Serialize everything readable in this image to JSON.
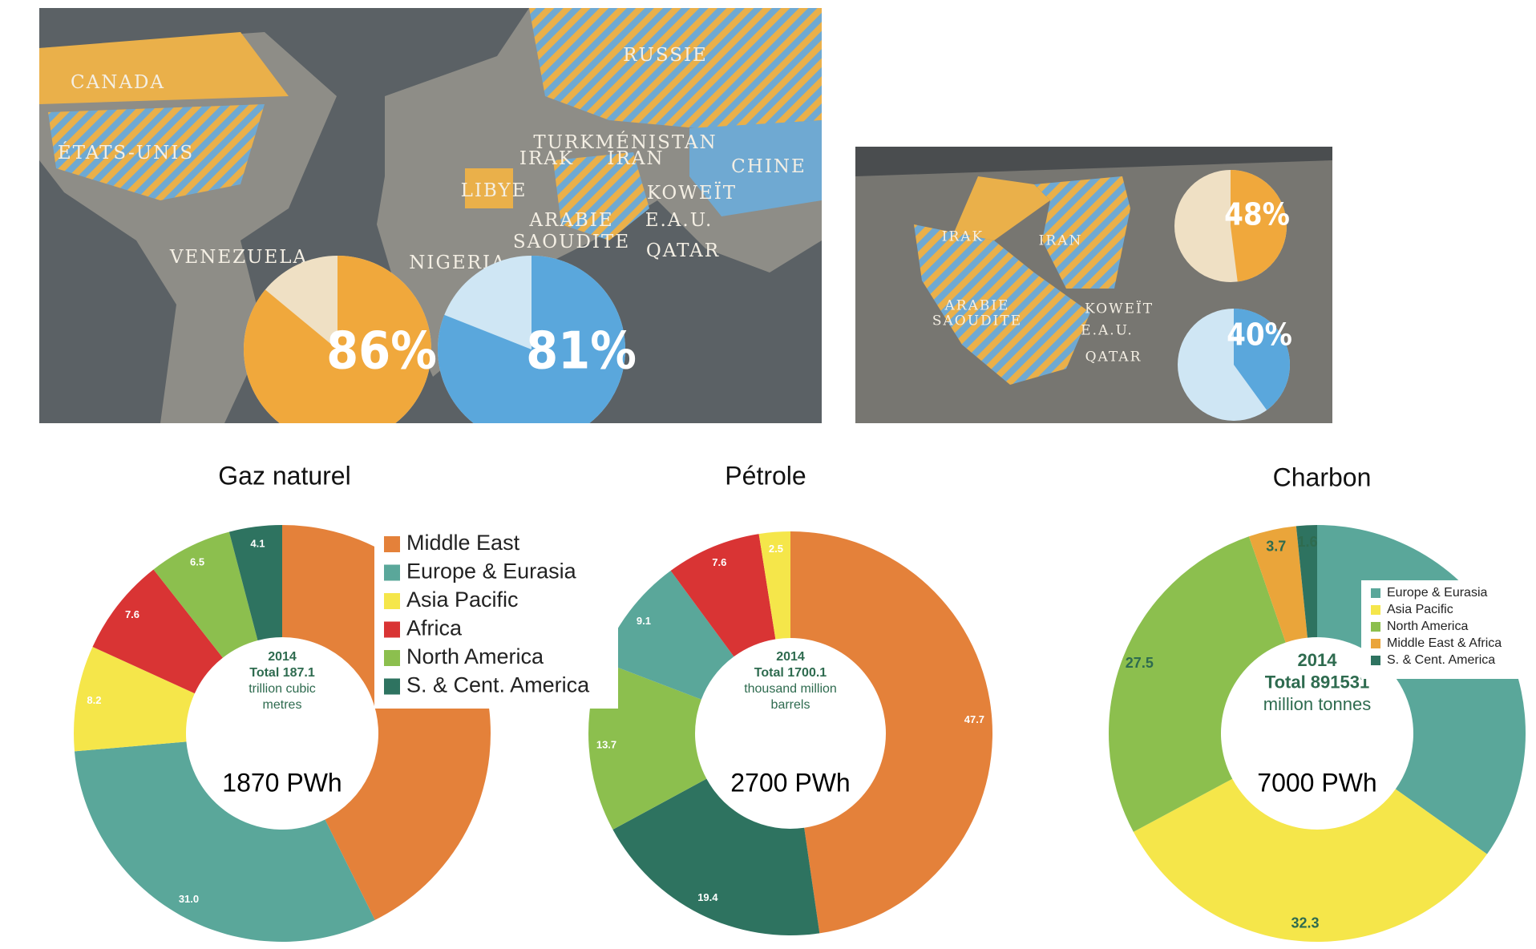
{
  "maps": [
    {
      "labels": [
        "CANADA",
        "ÉTATS-UNIS",
        "VENEZUELA",
        "RUSSIE",
        "CHINE",
        "TURKMÉNISTAN",
        "IRAK",
        "IRAN",
        "LIBYE",
        "KOWEÏT",
        "E.A.U.",
        "QATAR",
        "ARABIE",
        "SAOUDITE",
        "NIGERIA"
      ],
      "pies": [
        {
          "value": 86,
          "label": "86%",
          "color": "#f0a83c",
          "light": "#efe0c4"
        },
        {
          "value": 81,
          "label": "81%",
          "color": "#5aa7dc",
          "light": "#cfe6f4"
        }
      ]
    },
    {
      "labels": [
        "IRAK",
        "IRAN",
        "ARABIE",
        "SAOUDITE",
        "KOWEÏT",
        "E.A.U.",
        "QATAR"
      ],
      "pies": [
        {
          "value": 48,
          "label": "48%",
          "color": "#f0a83c",
          "light": "#efe0c4"
        },
        {
          "value": 40,
          "label": "40%",
          "color": "#5aa7dc",
          "light": "#cfe6f4"
        }
      ]
    }
  ],
  "chart_data": [
    {
      "type": "donut",
      "title": "Gaz naturel",
      "categories": [
        "Middle East",
        "Europe & Eurasia",
        "Asia Pacific",
        "Africa",
        "North America",
        "S. & Cent. America"
      ],
      "values": [
        42.7,
        31.0,
        8.2,
        7.6,
        6.5,
        4.1
      ],
      "value_labels": [
        "42.7",
        "31.0",
        "8.2",
        "7.6",
        "6.5",
        "4.1"
      ],
      "colors": [
        "#e4813a",
        "#5aa79a",
        "#f5e64a",
        "#d93434",
        "#8cbf4e",
        "#2e7360"
      ],
      "center_lines": [
        "2014",
        "Total 187.1",
        "trillion cubic",
        "metres"
      ],
      "center_value": "1870 PWh",
      "legend": true
    },
    {
      "type": "donut",
      "title": "Pétrole",
      "values": [
        47.7,
        19.4,
        13.7,
        9.1,
        7.6,
        2.5
      ],
      "colors": [
        "#e4813a",
        "#2e7360",
        "#8cbf4e",
        "#5aa79a",
        "#d93434",
        "#f5e64a"
      ],
      "center_lines": [
        "2014",
        "Total 1700.1",
        "thousand million",
        "barrels"
      ],
      "center_value": "2700 PWh",
      "legend": false
    },
    {
      "type": "donut",
      "title": "Charbon",
      "categories": [
        "Europe & Eurasia",
        "Asia Pacific",
        "North America",
        "Middle East & Africa",
        "S. & Cent. America"
      ],
      "values": [
        34.8,
        32.3,
        27.5,
        3.7,
        1.6
      ],
      "colors": [
        "#5aa79a",
        "#f5e64a",
        "#8cbf4e",
        "#eaa53a",
        "#2e7360"
      ],
      "center_lines": [
        "2014",
        "Total 891531",
        "million tonnes"
      ],
      "center_value": "7000 PWh",
      "legend": true
    }
  ]
}
